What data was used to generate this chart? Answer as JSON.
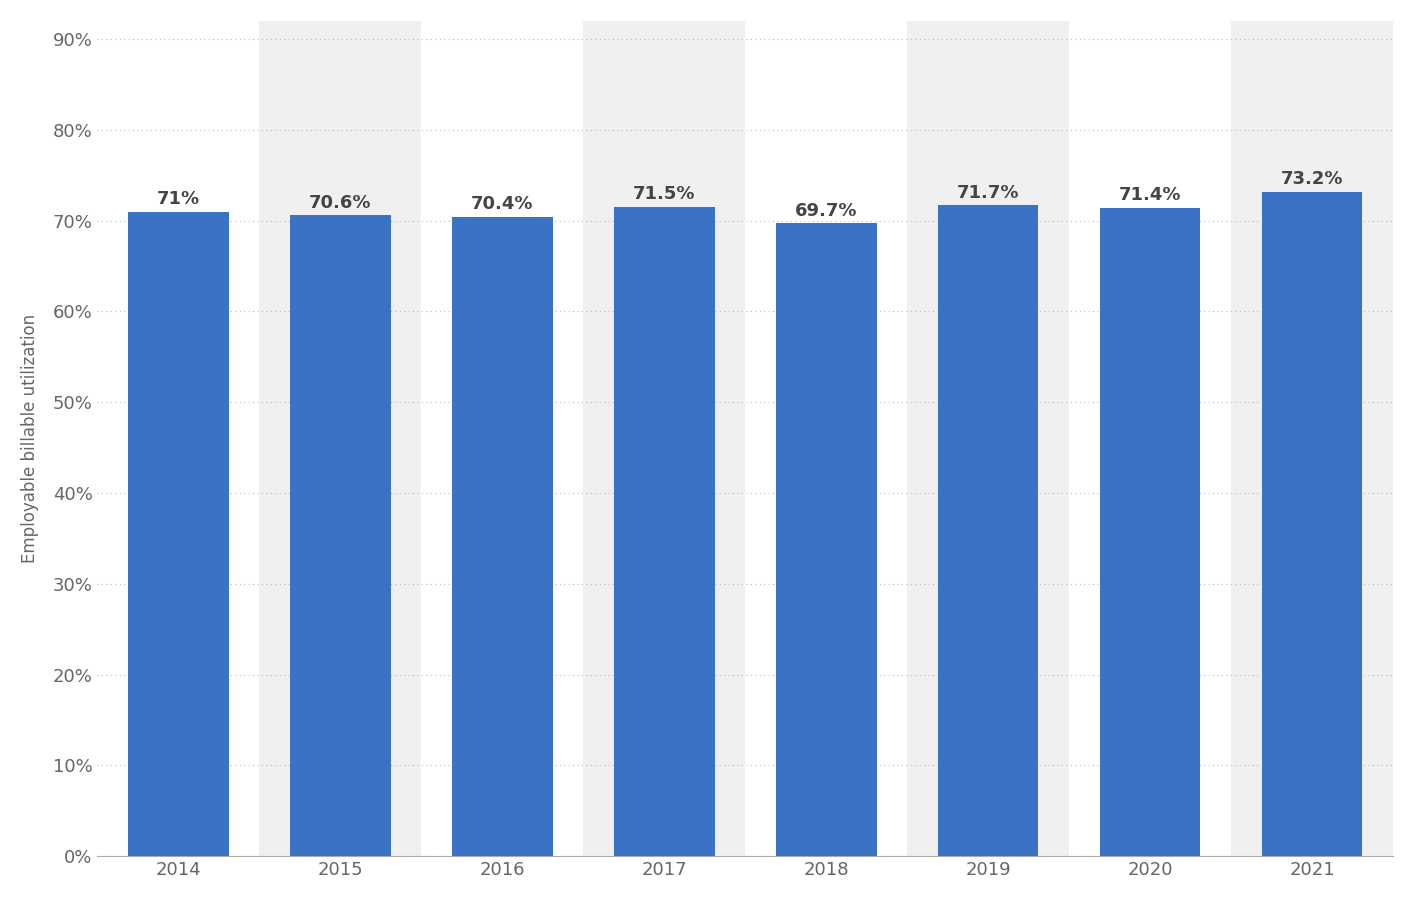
{
  "years": [
    "2014",
    "2015",
    "2016",
    "2017",
    "2018",
    "2019",
    "2020",
    "2021"
  ],
  "values": [
    71.0,
    70.6,
    70.4,
    71.5,
    69.7,
    71.7,
    71.4,
    73.2
  ],
  "labels": [
    "71%",
    "70.6%",
    "70.4%",
    "71.5%",
    "69.7%",
    "71.7%",
    "71.4%",
    "73.2%"
  ],
  "bar_color": "#3a72c4",
  "background_color": "#ffffff",
  "plot_bg_color": "#ffffff",
  "stripe_color": "#f0f0f0",
  "ylabel": "Employable billable utilization",
  "yticks": [
    0,
    10,
    20,
    30,
    40,
    50,
    60,
    70,
    80,
    90
  ],
  "ylim_max": 92,
  "grid_color": "#bbbbbb",
  "label_fontsize": 13,
  "tick_fontsize": 13,
  "ylabel_fontsize": 12,
  "bar_width": 0.62,
  "stripe_indices": [
    1,
    3,
    5,
    7
  ]
}
